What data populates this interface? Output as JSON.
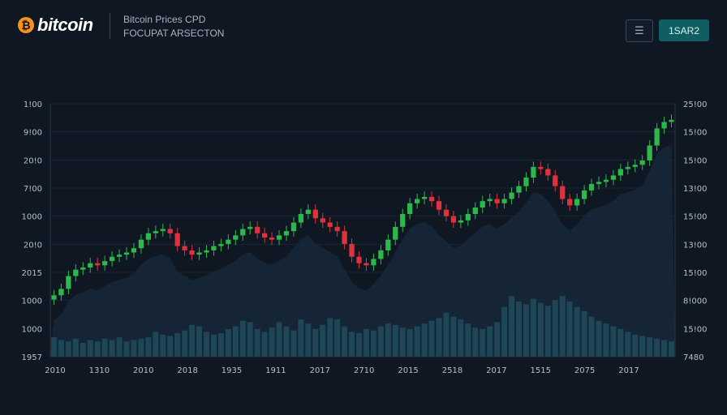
{
  "header": {
    "brand": "bitcoin",
    "brand_icon": "bitcoin-icon",
    "subtitle_line1": "Bitcoin Prices CPD",
    "subtitle_line2": "FOCUPAT ARSECTON",
    "menu_icon": "menu-icon",
    "action_label": "1SAR2"
  },
  "colors": {
    "background": "#0e1722",
    "up": "#2db84b",
    "down": "#e0323c",
    "volume": "#1e4b5a",
    "area": "#18283a",
    "accent": "#f7931a",
    "button": "#0f5e62"
  },
  "chart_data": {
    "type": "candlestick",
    "left_axis_ticks": [
      "1!00",
      "9!00",
      "20!0",
      "7!00",
      "1000",
      "20!0",
      "2015",
      "1000",
      "1000",
      "1957"
    ],
    "right_axis_ticks": [
      "25!00",
      "15!00",
      "15!00",
      "13!00",
      "15!00",
      "13!00",
      "15!00",
      "8!000",
      "15!00",
      "7480"
    ],
    "x_axis_ticks": [
      "2010",
      "1310",
      "2010",
      "2018",
      "1935",
      "1911",
      "2017",
      "2710",
      "2015",
      "2518",
      "2017",
      "1515",
      "2075",
      "2017"
    ],
    "grid": true,
    "legend": "none",
    "closes": [
      12,
      15,
      21,
      24,
      25,
      27,
      26,
      28,
      30,
      31,
      32,
      34,
      38,
      41,
      42,
      43,
      41,
      35,
      33,
      31,
      32,
      33,
      35,
      36,
      38,
      40,
      43,
      44,
      41,
      39,
      38,
      40,
      42,
      46,
      50,
      52,
      48,
      46,
      44,
      42,
      36,
      30,
      27,
      26,
      29,
      33,
      38,
      44,
      50,
      55,
      57,
      58,
      56,
      52,
      49,
      46,
      47,
      50,
      53,
      56,
      57,
      55,
      57,
      60,
      63,
      67,
      72,
      71,
      68,
      63,
      57,
      54,
      57,
      61,
      64,
      65,
      66,
      68,
      71,
      72,
      73,
      75,
      82,
      90,
      93,
      94
    ],
    "volumes": [
      14,
      12,
      11,
      13,
      10,
      12,
      11,
      13,
      12,
      14,
      11,
      12,
      13,
      14,
      18,
      16,
      15,
      17,
      19,
      23,
      22,
      18,
      16,
      17,
      20,
      22,
      26,
      25,
      20,
      18,
      21,
      25,
      22,
      19,
      27,
      24,
      20,
      23,
      28,
      27,
      22,
      18,
      17,
      20,
      19,
      22,
      24,
      23,
      21,
      20,
      22,
      24,
      26,
      28,
      32,
      29,
      27,
      24,
      21,
      20,
      22,
      25,
      36,
      44,
      40,
      38,
      42,
      39,
      37,
      41,
      44,
      40,
      36,
      33,
      29,
      26,
      24,
      22,
      20,
      18,
      16,
      15,
      14,
      13,
      12,
      11
    ]
  }
}
